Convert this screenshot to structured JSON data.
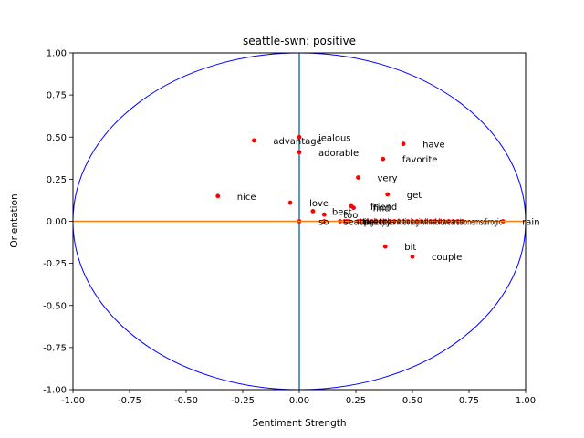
{
  "chart_data": {
    "type": "scatter",
    "title": "seattle-swn: positive",
    "xlabel": "Sentiment Strength",
    "ylabel": "Orientation",
    "xlim": [
      -1.0,
      1.0
    ],
    "ylim": [
      -1.0,
      1.0
    ],
    "xticks": [
      "-1.00",
      "-0.75",
      "-0.50",
      "-0.25",
      "0.00",
      "0.25",
      "0.50",
      "0.75",
      "1.00"
    ],
    "yticks": [
      "-1.00",
      "-0.75",
      "-0.50",
      "-0.25",
      "0.00",
      "0.25",
      "0.50",
      "0.75",
      "1.00"
    ],
    "colors": {
      "points": "#ff0000",
      "circle": "#0000ff",
      "vertical_line": "#1f77b4",
      "horizontal_line": "#ff7f0e"
    },
    "labeled_points": [
      {
        "word": "advantage",
        "x": -0.2,
        "y": 0.48
      },
      {
        "word": "jealous",
        "x": 0.0,
        "y": 0.5
      },
      {
        "word": "adorable",
        "x": 0.0,
        "y": 0.41
      },
      {
        "word": "have",
        "x": 0.46,
        "y": 0.46
      },
      {
        "word": "favorite",
        "x": 0.37,
        "y": 0.37
      },
      {
        "word": "very",
        "x": 0.26,
        "y": 0.26
      },
      {
        "word": "nice",
        "x": -0.36,
        "y": 0.15
      },
      {
        "word": "get",
        "x": 0.39,
        "y": 0.16
      },
      {
        "word": "love",
        "x": -0.04,
        "y": 0.11
      },
      {
        "word": "friend",
        "x": 0.23,
        "y": 0.09
      },
      {
        "word": "find",
        "x": 0.24,
        "y": 0.08
      },
      {
        "word": "best",
        "x": 0.06,
        "y": 0.06
      },
      {
        "word": "too",
        "x": 0.11,
        "y": 0.04
      },
      {
        "word": "so",
        "x": 0.0,
        "y": 0.0
      },
      {
        "word": "seattle",
        "x": 0.11,
        "y": 0.0
      },
      {
        "word": "pretty",
        "x": 0.2,
        "y": 0.0
      },
      {
        "word": "rain",
        "x": 0.9,
        "y": 0.0
      },
      {
        "word": "bit",
        "x": 0.38,
        "y": -0.15
      },
      {
        "word": "couple",
        "x": 0.5,
        "y": -0.21
      }
    ],
    "crowded_points_x": [
      0.18,
      0.21,
      0.22,
      0.26,
      0.27,
      0.28,
      0.3,
      0.32,
      0.34,
      0.36,
      0.38,
      0.4,
      0.42,
      0.44,
      0.46,
      0.48,
      0.5,
      0.52,
      0.54,
      0.56,
      0.58,
      0.6,
      0.62,
      0.64,
      0.66,
      0.68,
      0.7,
      0.72
    ],
    "crowded_label_text": "tinglkeythankitioiugiwilnabitwearstronemsdirogic"
  }
}
